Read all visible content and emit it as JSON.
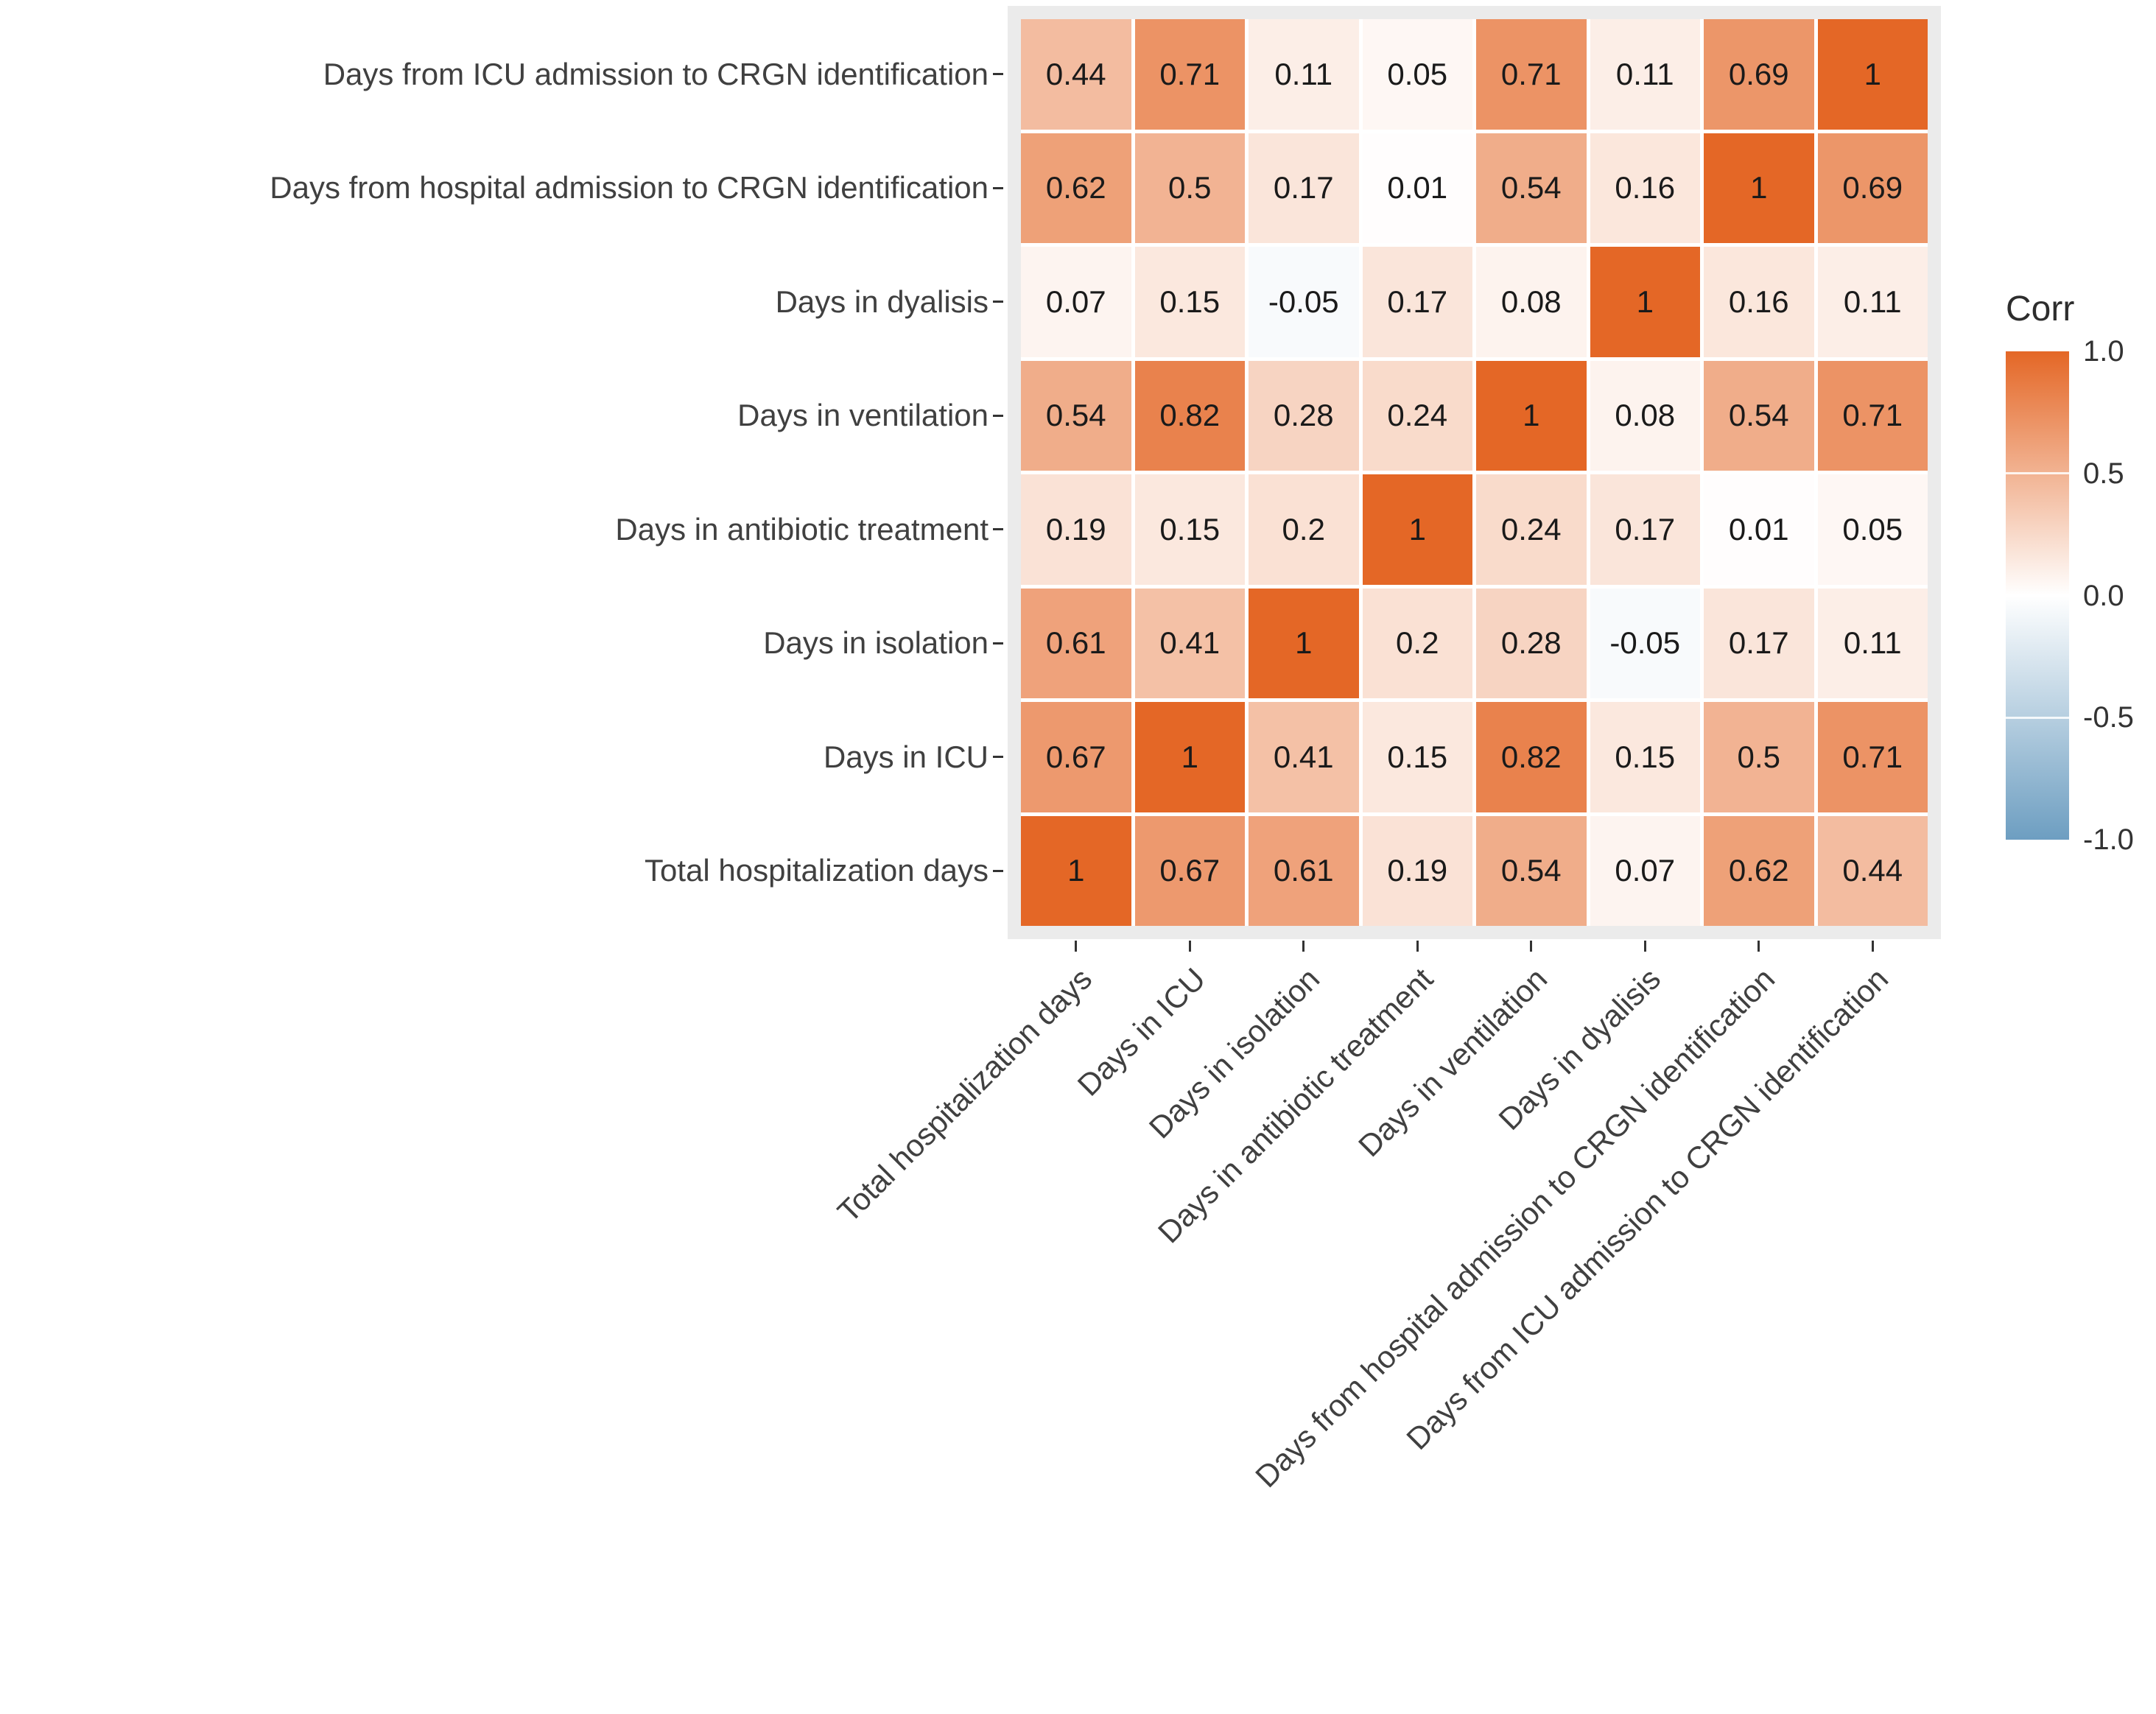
{
  "chart_data": {
    "type": "heatmap",
    "title": "",
    "legend": {
      "title": "Corr",
      "ticks": [
        "1.0",
        "0.5",
        "0.0",
        "-0.5",
        "-1.0"
      ],
      "min": -1,
      "max": 1,
      "position": "right"
    },
    "colors": {
      "high": "#E46726",
      "mid": "#FFFFFF",
      "low": "#6D9EC1",
      "panel_bg": "#EBEBEB",
      "cell_gap": "#FFFFFF",
      "axis_text": "#404040",
      "value_text": "#1A1A1A"
    },
    "x_categories": [
      "Total hospitalization days",
      "Days in ICU",
      "Days in isolation",
      "Days in antibiotic treatment",
      "Days in ventilation",
      "Days in dyalisis",
      "Days from hospital admission to CRGN identification",
      "Days from ICU admission to CRGN identification"
    ],
    "y_categories_top_to_bottom": [
      "Days from ICU admission to CRGN identification",
      "Days from hospital admission to CRGN identification",
      "Days in dyalisis",
      "Days in ventilation",
      "Days in antibiotic treatment",
      "Days in isolation",
      "Days in ICU",
      "Total hospitalization days"
    ],
    "matrix_rows_top_to_bottom": [
      [
        0.44,
        0.71,
        0.11,
        0.05,
        0.71,
        0.11,
        0.69,
        1
      ],
      [
        0.62,
        0.5,
        0.17,
        0.01,
        0.54,
        0.16,
        1,
        0.69
      ],
      [
        0.07,
        0.15,
        -0.05,
        0.17,
        0.08,
        1,
        0.16,
        0.11
      ],
      [
        0.54,
        0.82,
        0.28,
        0.24,
        1,
        0.08,
        0.54,
        0.71
      ],
      [
        0.19,
        0.15,
        0.2,
        1,
        0.24,
        0.17,
        0.01,
        0.05
      ],
      [
        0.61,
        0.41,
        1,
        0.2,
        0.28,
        -0.05,
        0.17,
        0.11
      ],
      [
        0.67,
        1,
        0.41,
        0.15,
        0.82,
        0.15,
        0.5,
        0.71
      ],
      [
        1,
        0.67,
        0.61,
        0.19,
        0.54,
        0.07,
        0.62,
        0.44
      ]
    ],
    "grid": "off"
  }
}
